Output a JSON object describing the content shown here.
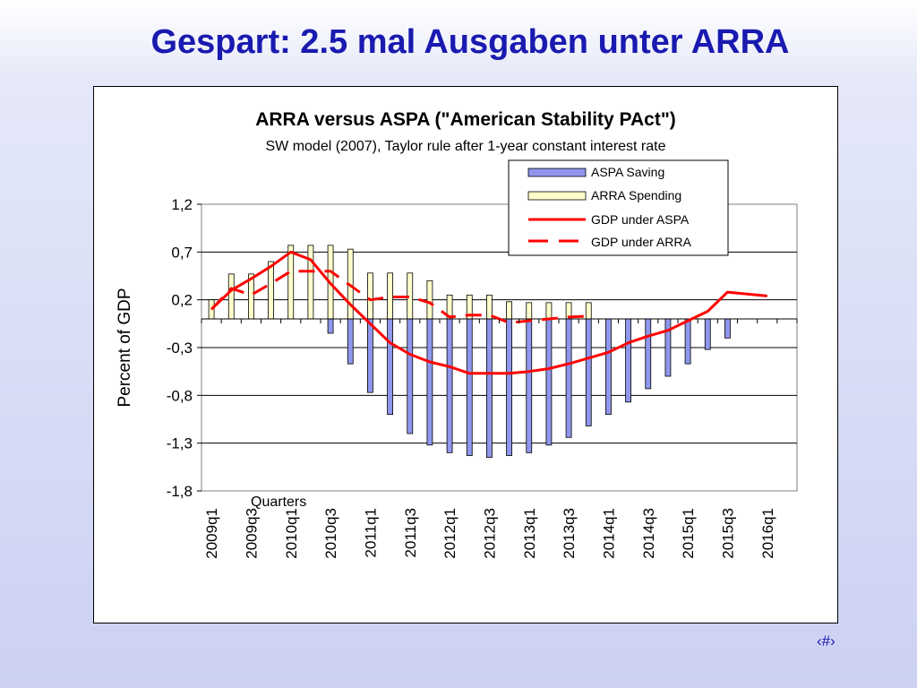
{
  "slide": {
    "title": "Gespart: 2.5 mal Ausgaben unter ARRA",
    "page_number": "‹#›"
  },
  "colors": {
    "aspa_saving": "#8f96ec",
    "arra_spending": "#ffffcc",
    "gdp_lines": "#ff0000",
    "title": "#1a1ab0"
  },
  "chart_data": {
    "type": "bar",
    "title": "ARRA  versus  ASPA (\"American Stability PAct\")",
    "subtitle": "SW model (2007), Taylor rule after 1-year constant interest rate",
    "xlabel": "Quarters",
    "ylabel": "Percent of GDP",
    "ylim": [
      -1.8,
      1.2
    ],
    "y_ticks": [
      "1,2",
      "0,7",
      "0,2",
      "-0,3",
      "-0,8",
      "-1,3",
      "-1,8"
    ],
    "y_tick_values": [
      1.2,
      0.7,
      0.2,
      -0.3,
      -0.8,
      -1.3,
      -1.8
    ],
    "grid": true,
    "legend_position": "top-right",
    "categories": [
      "2009q1",
      "2009q2",
      "2009q3",
      "2009q4",
      "2010q1",
      "2010q2",
      "2010q3",
      "2010q4",
      "2011q1",
      "2011q2",
      "2011q3",
      "2011q4",
      "2012q1",
      "2012q2",
      "2012q3",
      "2012q4",
      "2013q1",
      "2013q2",
      "2013q3",
      "2013q4",
      "2014q1",
      "2014q2",
      "2014q3",
      "2014q4",
      "2015q1",
      "2015q2",
      "2015q3",
      "2015q4",
      "2016q1",
      "2016q2"
    ],
    "x_tick_labels": [
      "2009q1",
      "2009q3",
      "2010q1",
      "2010q3",
      "2011q1",
      "2011q3",
      "2012q1",
      "2012q3",
      "2013q1",
      "2013q3",
      "2014q1",
      "2014q3",
      "2015q1",
      "2015q3",
      "2016q1"
    ],
    "series": [
      {
        "name": "ASPA Saving",
        "type": "bar",
        "values": [
          0,
          0,
          0,
          0,
          0,
          0,
          -0.15,
          -0.47,
          -0.77,
          -1.0,
          -1.2,
          -1.32,
          -1.4,
          -1.43,
          -1.45,
          -1.43,
          -1.4,
          -1.32,
          -1.24,
          -1.12,
          -1.0,
          -0.87,
          -0.73,
          -0.6,
          -0.47,
          -0.32,
          -0.2,
          0,
          0,
          0
        ]
      },
      {
        "name": "ARRA Spending",
        "type": "bar",
        "values": [
          0.2,
          0.47,
          0.47,
          0.6,
          0.77,
          0.77,
          0.77,
          0.73,
          0.48,
          0.48,
          0.48,
          0.4,
          0.25,
          0.25,
          0.25,
          0.18,
          0.17,
          0.17,
          0.17,
          0.17,
          0,
          0,
          0,
          0,
          0,
          0,
          0,
          0,
          0,
          0
        ]
      },
      {
        "name": "GDP under ASPA",
        "type": "line",
        "dashed": false,
        "values": [
          0.1,
          0.3,
          0.42,
          0.55,
          0.7,
          0.62,
          0.37,
          0.15,
          -0.05,
          -0.25,
          -0.37,
          -0.45,
          -0.5,
          -0.57,
          -0.57,
          -0.57,
          -0.55,
          -0.52,
          -0.47,
          -0.41,
          -0.35,
          -0.25,
          -0.18,
          -0.12,
          -0.02,
          0.08,
          0.28,
          0.26,
          0.24,
          null
        ]
      },
      {
        "name": "GDP under ARRA",
        "type": "line",
        "dashed": true,
        "values": [
          0.1,
          0.32,
          0.25,
          0.37,
          0.5,
          0.5,
          0.5,
          0.35,
          0.2,
          0.23,
          0.23,
          0.17,
          0.02,
          0.04,
          0.04,
          -0.04,
          -0.02,
          0.0,
          0.02,
          0.03,
          null,
          null,
          null,
          null,
          null,
          null,
          null,
          null,
          null,
          null
        ]
      }
    ]
  }
}
